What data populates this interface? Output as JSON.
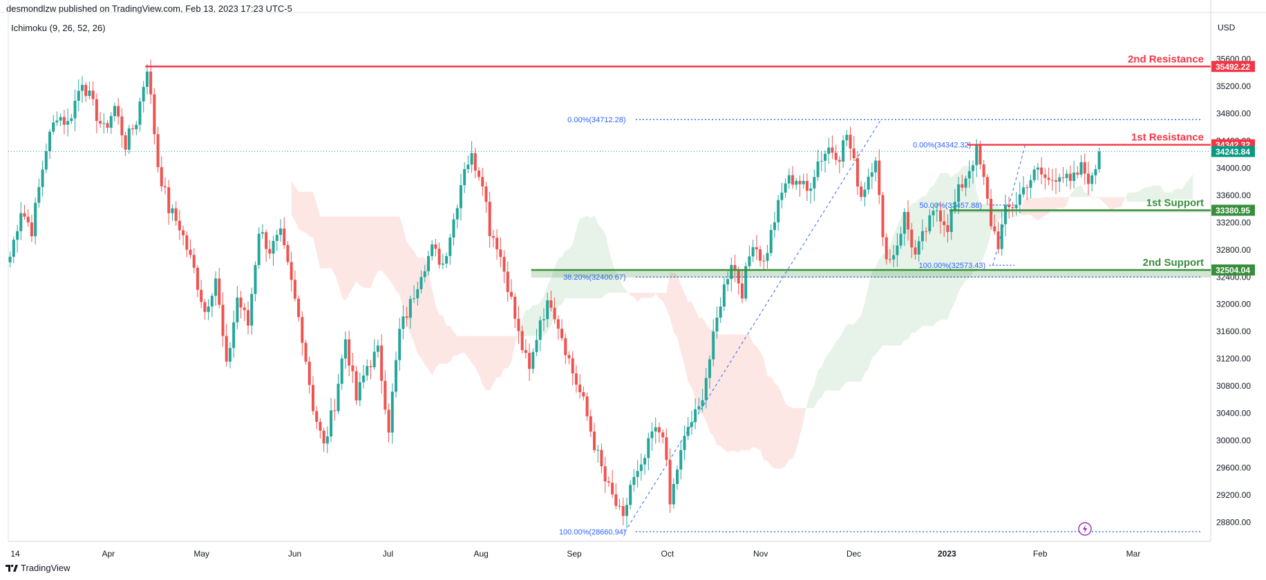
{
  "header": {
    "published_by": "desmondlzw published on TradingView.com, Feb 13, 2023 17:23 UTC-5",
    "indicator": "Ichimoku (9, 26, 52, 26)",
    "currency": "USD",
    "brand": "TradingView"
  },
  "colors": {
    "bull": "#26a69a",
    "bear": "#ef5350",
    "resistance": "#f23645",
    "support": "#388e3c",
    "fib": "#2962ff",
    "last_price_bg": "#089981",
    "cloud_bull": "#e4f2e6",
    "cloud_bear": "#fde4e2",
    "grid_text": "#131722"
  },
  "chart_data": {
    "type": "candlestick",
    "y_axis": {
      "min": 28520,
      "max": 35880,
      "ticks": [
        35600,
        35200,
        34800,
        34400,
        34000,
        33600,
        33200,
        32800,
        32400,
        32000,
        31600,
        31200,
        30800,
        30400,
        30000,
        29600,
        29200,
        28800
      ],
      "tick_labels": [
        "35600.00",
        "35200.00",
        "34800.00",
        "34400.00",
        "34000.00",
        "33600.00",
        "33200.00",
        "32800.00",
        "32400.00",
        "32000.00",
        "31600.00",
        "31200.00",
        "30800.00",
        "30400.00",
        "30000.00",
        "29600.00",
        "29200.00",
        "28800.00"
      ]
    },
    "x_axis": {
      "labels": [
        "14",
        "Apr",
        "May",
        "Jun",
        "Jul",
        "Aug",
        "Sep",
        "Oct",
        "Nov",
        "Dec",
        "2023",
        "Feb",
        "Mar"
      ],
      "bold_labels": [
        "2023"
      ]
    },
    "levels": [
      {
        "name": "2nd Resistance",
        "price": 35492.22,
        "label": "2nd Resistance",
        "tag": "35492.22",
        "kind": "resistance"
      },
      {
        "name": "1st Resistance",
        "price": 34342.32,
        "label": "1st Resistance",
        "tag": "34342.32",
        "kind": "resistance"
      },
      {
        "name": "1st Support",
        "price": 33380.95,
        "label": "1st Support",
        "tag": "33380.95",
        "kind": "support"
      },
      {
        "name": "2nd Support",
        "price": 32504.04,
        "label": "2nd Support",
        "tag": "32504.04",
        "kind": "support"
      }
    ],
    "last_price": {
      "price": 34243.84,
      "tag": "34243.84"
    },
    "fib_levels": [
      {
        "label": "0.00%(34712.28)",
        "price": 34712.28
      },
      {
        "label": "38.20%(32400.67)",
        "price": 32400.67
      },
      {
        "label": "100.00%(28660.94)",
        "price": 28660.94
      },
      {
        "label": "0.00%(34342.32)",
        "price": 34342.32
      },
      {
        "label": "50.00%(33457.88)",
        "price": 33457.88
      },
      {
        "label": "100.00%(32573.43)",
        "price": 32573.43
      }
    ],
    "price_path": [
      [
        0,
        32700
      ],
      [
        3,
        33400
      ],
      [
        6,
        33100
      ],
      [
        10,
        34300
      ],
      [
        13,
        34800
      ],
      [
        16,
        34650
      ],
      [
        20,
        35300
      ],
      [
        23,
        34900
      ],
      [
        26,
        34550
      ],
      [
        29,
        34900
      ],
      [
        32,
        34350
      ],
      [
        35,
        34700
      ],
      [
        38,
        35500
      ],
      [
        41,
        34050
      ],
      [
        44,
        33400
      ],
      [
        47,
        33150
      ],
      [
        51,
        32500
      ],
      [
        54,
        31900
      ],
      [
        57,
        32400
      ],
      [
        60,
        31050
      ],
      [
        63,
        32100
      ],
      [
        66,
        31700
      ],
      [
        69,
        33100
      ],
      [
        72,
        32800
      ],
      [
        75,
        33000
      ],
      [
        78,
        32300
      ],
      [
        81,
        31550
      ],
      [
        84,
        30500
      ],
      [
        87,
        29900
      ],
      [
        90,
        30550
      ],
      [
        93,
        31500
      ],
      [
        96,
        30600
      ],
      [
        99,
        31100
      ],
      [
        102,
        31300
      ],
      [
        105,
        30200
      ],
      [
        108,
        31600
      ],
      [
        111,
        32000
      ],
      [
        114,
        32500
      ],
      [
        117,
        32800
      ],
      [
        120,
        32600
      ],
      [
        123,
        33250
      ],
      [
        126,
        34050
      ],
      [
        128,
        34150
      ],
      [
        131,
        33850
      ],
      [
        133,
        33100
      ],
      [
        135,
        32900
      ],
      [
        138,
        32300
      ],
      [
        141,
        31550
      ],
      [
        144,
        31000
      ],
      [
        147,
        31800
      ],
      [
        150,
        32050
      ],
      [
        153,
        31550
      ],
      [
        156,
        31000
      ],
      [
        159,
        30550
      ],
      [
        162,
        29950
      ],
      [
        165,
        29400
      ],
      [
        168,
        29050
      ],
      [
        170,
        28800
      ],
      [
        172,
        29350
      ],
      [
        175,
        29550
      ],
      [
        178,
        30100
      ],
      [
        181,
        30150
      ],
      [
        183,
        29050
      ],
      [
        185,
        29600
      ],
      [
        188,
        30200
      ],
      [
        191,
        30450
      ],
      [
        194,
        31200
      ],
      [
        197,
        32050
      ],
      [
        200,
        32650
      ],
      [
        203,
        32200
      ],
      [
        206,
        32950
      ],
      [
        209,
        32600
      ],
      [
        212,
        33250
      ],
      [
        215,
        33800
      ],
      [
        218,
        33850
      ],
      [
        221,
        33650
      ],
      [
        224,
        34100
      ],
      [
        227,
        34300
      ],
      [
        230,
        34200
      ],
      [
        232,
        34500
      ],
      [
        234,
        34050
      ],
      [
        236,
        33600
      ],
      [
        238,
        33900
      ],
      [
        240,
        34200
      ],
      [
        242,
        32900
      ],
      [
        244,
        32650
      ],
      [
        246,
        32900
      ],
      [
        248,
        33300
      ],
      [
        251,
        32700
      ],
      [
        254,
        33100
      ],
      [
        257,
        33400
      ],
      [
        260,
        33150
      ],
      [
        263,
        33650
      ],
      [
        266,
        34000
      ],
      [
        268,
        34250
      ],
      [
        270,
        33800
      ],
      [
        272,
        33200
      ],
      [
        274,
        32900
      ],
      [
        276,
        33350
      ],
      [
        279,
        33500
      ],
      [
        282,
        33800
      ],
      [
        285,
        33950
      ],
      [
        288,
        33800
      ],
      [
        291,
        33950
      ],
      [
        294,
        33750
      ],
      [
        297,
        34000
      ],
      [
        300,
        33800
      ],
      [
        302,
        34243.84
      ]
    ]
  }
}
